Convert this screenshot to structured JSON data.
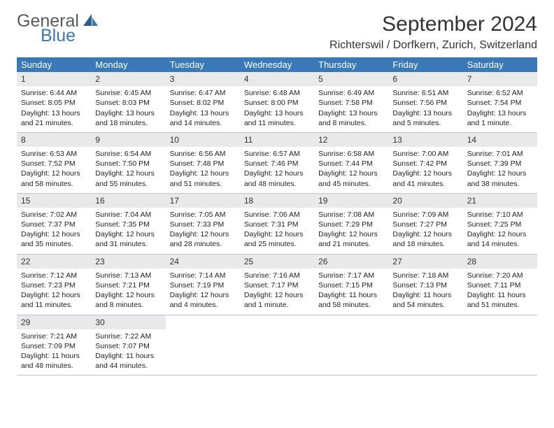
{
  "logo": {
    "word1": "General",
    "word2": "Blue"
  },
  "title": "September 2024",
  "subtitle": "Richterswil / Dorfkern, Zurich, Switzerland",
  "colors": {
    "header_bg": "#3a79b7",
    "header_text": "#ffffff",
    "daynum_bg": "#e9e9e9",
    "week_border": "#b8c7d6",
    "body_text": "#222222",
    "title_text": "#333333",
    "logo_gray": "#5a5a5a",
    "logo_blue": "#3a79b7",
    "page_bg": "#ffffff"
  },
  "typography": {
    "title_fontsize": 30,
    "subtitle_fontsize": 16,
    "header_cell_fontsize": 13,
    "daynum_fontsize": 12,
    "body_fontsize": 10.5,
    "logo_fontsize": 25
  },
  "day_headers": [
    "Sunday",
    "Monday",
    "Tuesday",
    "Wednesday",
    "Thursday",
    "Friday",
    "Saturday"
  ],
  "weeks": [
    [
      {
        "n": "1",
        "sunrise": "Sunrise: 6:44 AM",
        "sunset": "Sunset: 8:05 PM",
        "daylight": "Daylight: 13 hours and 21 minutes."
      },
      {
        "n": "2",
        "sunrise": "Sunrise: 6:45 AM",
        "sunset": "Sunset: 8:03 PM",
        "daylight": "Daylight: 13 hours and 18 minutes."
      },
      {
        "n": "3",
        "sunrise": "Sunrise: 6:47 AM",
        "sunset": "Sunset: 8:02 PM",
        "daylight": "Daylight: 13 hours and 14 minutes."
      },
      {
        "n": "4",
        "sunrise": "Sunrise: 6:48 AM",
        "sunset": "Sunset: 8:00 PM",
        "daylight": "Daylight: 13 hours and 11 minutes."
      },
      {
        "n": "5",
        "sunrise": "Sunrise: 6:49 AM",
        "sunset": "Sunset: 7:58 PM",
        "daylight": "Daylight: 13 hours and 8 minutes."
      },
      {
        "n": "6",
        "sunrise": "Sunrise: 6:51 AM",
        "sunset": "Sunset: 7:56 PM",
        "daylight": "Daylight: 13 hours and 5 minutes."
      },
      {
        "n": "7",
        "sunrise": "Sunrise: 6:52 AM",
        "sunset": "Sunset: 7:54 PM",
        "daylight": "Daylight: 13 hours and 1 minute."
      }
    ],
    [
      {
        "n": "8",
        "sunrise": "Sunrise: 6:53 AM",
        "sunset": "Sunset: 7:52 PM",
        "daylight": "Daylight: 12 hours and 58 minutes."
      },
      {
        "n": "9",
        "sunrise": "Sunrise: 6:54 AM",
        "sunset": "Sunset: 7:50 PM",
        "daylight": "Daylight: 12 hours and 55 minutes."
      },
      {
        "n": "10",
        "sunrise": "Sunrise: 6:56 AM",
        "sunset": "Sunset: 7:48 PM",
        "daylight": "Daylight: 12 hours and 51 minutes."
      },
      {
        "n": "11",
        "sunrise": "Sunrise: 6:57 AM",
        "sunset": "Sunset: 7:46 PM",
        "daylight": "Daylight: 12 hours and 48 minutes."
      },
      {
        "n": "12",
        "sunrise": "Sunrise: 6:58 AM",
        "sunset": "Sunset: 7:44 PM",
        "daylight": "Daylight: 12 hours and 45 minutes."
      },
      {
        "n": "13",
        "sunrise": "Sunrise: 7:00 AM",
        "sunset": "Sunset: 7:42 PM",
        "daylight": "Daylight: 12 hours and 41 minutes."
      },
      {
        "n": "14",
        "sunrise": "Sunrise: 7:01 AM",
        "sunset": "Sunset: 7:39 PM",
        "daylight": "Daylight: 12 hours and 38 minutes."
      }
    ],
    [
      {
        "n": "15",
        "sunrise": "Sunrise: 7:02 AM",
        "sunset": "Sunset: 7:37 PM",
        "daylight": "Daylight: 12 hours and 35 minutes."
      },
      {
        "n": "16",
        "sunrise": "Sunrise: 7:04 AM",
        "sunset": "Sunset: 7:35 PM",
        "daylight": "Daylight: 12 hours and 31 minutes."
      },
      {
        "n": "17",
        "sunrise": "Sunrise: 7:05 AM",
        "sunset": "Sunset: 7:33 PM",
        "daylight": "Daylight: 12 hours and 28 minutes."
      },
      {
        "n": "18",
        "sunrise": "Sunrise: 7:06 AM",
        "sunset": "Sunset: 7:31 PM",
        "daylight": "Daylight: 12 hours and 25 minutes."
      },
      {
        "n": "19",
        "sunrise": "Sunrise: 7:08 AM",
        "sunset": "Sunset: 7:29 PM",
        "daylight": "Daylight: 12 hours and 21 minutes."
      },
      {
        "n": "20",
        "sunrise": "Sunrise: 7:09 AM",
        "sunset": "Sunset: 7:27 PM",
        "daylight": "Daylight: 12 hours and 18 minutes."
      },
      {
        "n": "21",
        "sunrise": "Sunrise: 7:10 AM",
        "sunset": "Sunset: 7:25 PM",
        "daylight": "Daylight: 12 hours and 14 minutes."
      }
    ],
    [
      {
        "n": "22",
        "sunrise": "Sunrise: 7:12 AM",
        "sunset": "Sunset: 7:23 PM",
        "daylight": "Daylight: 12 hours and 11 minutes."
      },
      {
        "n": "23",
        "sunrise": "Sunrise: 7:13 AM",
        "sunset": "Sunset: 7:21 PM",
        "daylight": "Daylight: 12 hours and 8 minutes."
      },
      {
        "n": "24",
        "sunrise": "Sunrise: 7:14 AM",
        "sunset": "Sunset: 7:19 PM",
        "daylight": "Daylight: 12 hours and 4 minutes."
      },
      {
        "n": "25",
        "sunrise": "Sunrise: 7:16 AM",
        "sunset": "Sunset: 7:17 PM",
        "daylight": "Daylight: 12 hours and 1 minute."
      },
      {
        "n": "26",
        "sunrise": "Sunrise: 7:17 AM",
        "sunset": "Sunset: 7:15 PM",
        "daylight": "Daylight: 11 hours and 58 minutes."
      },
      {
        "n": "27",
        "sunrise": "Sunrise: 7:18 AM",
        "sunset": "Sunset: 7:13 PM",
        "daylight": "Daylight: 11 hours and 54 minutes."
      },
      {
        "n": "28",
        "sunrise": "Sunrise: 7:20 AM",
        "sunset": "Sunset: 7:11 PM",
        "daylight": "Daylight: 11 hours and 51 minutes."
      }
    ],
    [
      {
        "n": "29",
        "sunrise": "Sunrise: 7:21 AM",
        "sunset": "Sunset: 7:09 PM",
        "daylight": "Daylight: 11 hours and 48 minutes."
      },
      {
        "n": "30",
        "sunrise": "Sunrise: 7:22 AM",
        "sunset": "Sunset: 7:07 PM",
        "daylight": "Daylight: 11 hours and 44 minutes."
      },
      null,
      null,
      null,
      null,
      null
    ]
  ]
}
